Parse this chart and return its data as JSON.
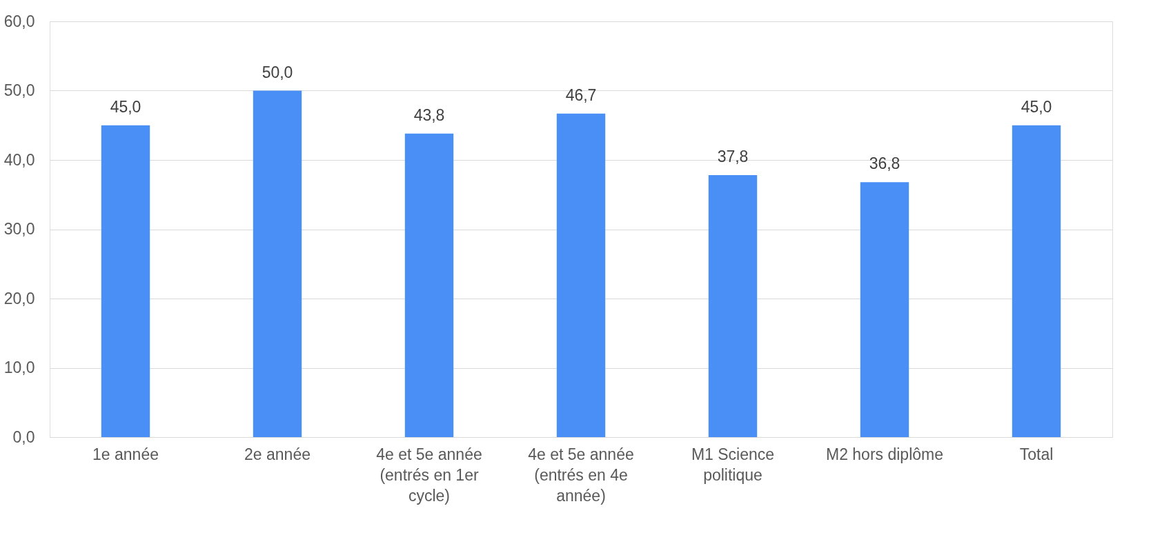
{
  "chart_data": {
    "type": "bar",
    "categories": [
      "1e année",
      "2e année",
      "4e et 5e année (entrés en 1er cycle)",
      "4e et 5e année (entrés en 4e année)",
      "M1 Science politique",
      "M2 hors diplôme",
      "Total"
    ],
    "values": [
      45.0,
      50.0,
      43.8,
      46.7,
      37.8,
      36.8,
      45.0
    ],
    "value_labels": [
      "45,0",
      "50,0",
      "43,8",
      "46,7",
      "37,8",
      "36,8",
      "45,0"
    ],
    "color": "#4a8ff5",
    "ylim": [
      0,
      60
    ],
    "yticks": [
      {
        "value": 0,
        "label": "0,0"
      },
      {
        "value": 10,
        "label": "10,0"
      },
      {
        "value": 20,
        "label": "20,0"
      },
      {
        "value": 30,
        "label": "30,0"
      },
      {
        "value": 40,
        "label": "40,0"
      },
      {
        "value": 50,
        "label": "50,0"
      },
      {
        "value": 60,
        "label": "60,0"
      }
    ],
    "grid": "y"
  }
}
